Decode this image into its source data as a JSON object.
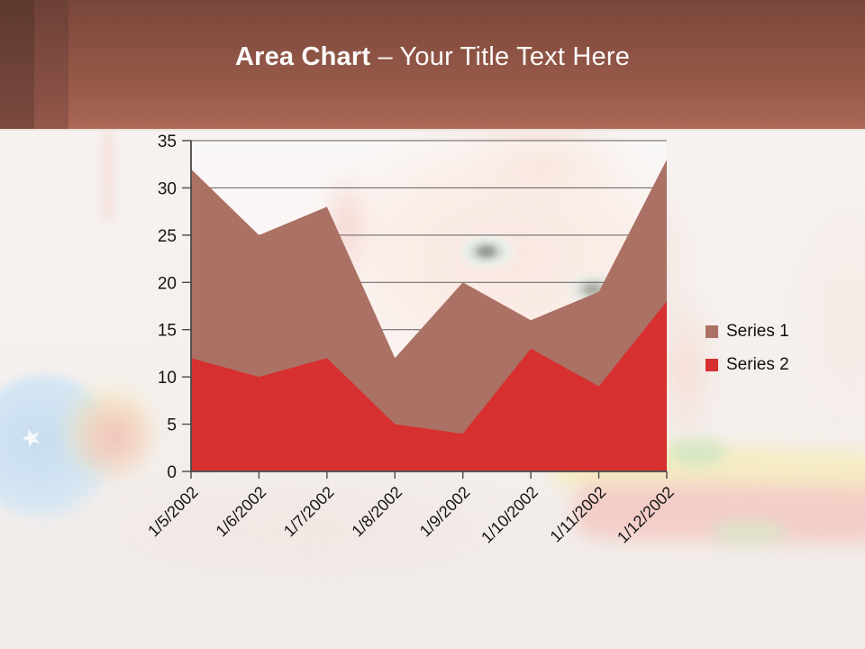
{
  "slide": {
    "header": {
      "title_bold": "Area Chart",
      "title_rest": " – Your Title Text Here"
    }
  },
  "chart_data": {
    "type": "area",
    "stacking": "overlap",
    "title": "Area Chart – Your Title Text Here",
    "categories": [
      "1/5/2002",
      "1/6/2002",
      "1/7/2002",
      "1/8/2002",
      "1/9/2002",
      "1/10/2002",
      "1/11/2002",
      "1/12/2002"
    ],
    "series": [
      {
        "name": "Series 1",
        "color": "#ab7164",
        "values": [
          32,
          25,
          28,
          12,
          20,
          16,
          19,
          33
        ]
      },
      {
        "name": "Series 2",
        "color": "#d63130",
        "values": [
          12,
          10,
          12,
          5,
          4,
          13,
          9,
          18
        ]
      }
    ],
    "xlabel": "",
    "ylabel": "",
    "ylim": [
      0,
      35
    ],
    "ytick_step": 5,
    "y_tick_labels": [
      "0",
      "5",
      "10",
      "15",
      "20",
      "25",
      "30",
      "35"
    ],
    "grid": true,
    "legend_position": "right",
    "x_label_rotation_deg": -45,
    "axis_color": "#4a4a4a",
    "gridline_color": "#5f5f5f"
  }
}
